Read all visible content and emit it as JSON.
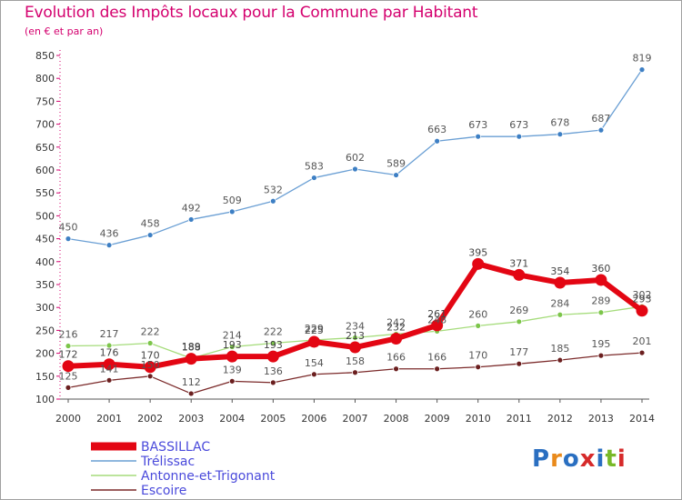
{
  "title": "Evolution des Impôts locaux pour la Commune par Habitant",
  "subtitle": "(en € et par an)",
  "logo": {
    "text": "Proxiti",
    "colors": [
      "#2a6fc1",
      "#e98a1b",
      "#2a6fc1",
      "#d62a2a",
      "#2a6fc1",
      "#78b928",
      "#d62a2a"
    ]
  },
  "chart_data": {
    "type": "line",
    "x": [
      2000,
      2001,
      2002,
      2003,
      2004,
      2005,
      2006,
      2007,
      2008,
      2009,
      2010,
      2011,
      2012,
      2013,
      2014
    ],
    "ylim": [
      100,
      850
    ],
    "yticks": [
      100,
      150,
      200,
      250,
      300,
      350,
      400,
      450,
      500,
      550,
      600,
      650,
      700,
      750,
      800,
      850
    ],
    "grid": false,
    "legend": "bottom-left",
    "series": [
      {
        "name": "Trélissac",
        "color": "#6a9fd4",
        "marker": "#3d7fc4",
        "values": [
          450,
          436,
          458,
          492,
          509,
          532,
          583,
          602,
          589,
          663,
          673,
          673,
          678,
          687,
          819
        ]
      },
      {
        "name": "Antonne-et-Trigonant",
        "color": "#a5dc7b",
        "marker": "#7cc54a",
        "values": [
          216,
          217,
          222,
          189,
          214,
          222,
          229,
          234,
          242,
          248,
          260,
          269,
          284,
          289,
          302
        ]
      },
      {
        "name": "Escoire",
        "color": "#7b2a2a",
        "marker": "#6b1f1f",
        "values": [
          125,
          141,
          150,
          112,
          139,
          136,
          154,
          158,
          166,
          166,
          170,
          177,
          185,
          195,
          201
        ]
      },
      {
        "name": "BASSILLAC",
        "color": "#e30613",
        "marker": "#e30613",
        "values": [
          172,
          176,
          170,
          188,
          193,
          193,
          225,
          213,
          232,
          261,
          395,
          371,
          354,
          360,
          293
        ]
      }
    ]
  }
}
